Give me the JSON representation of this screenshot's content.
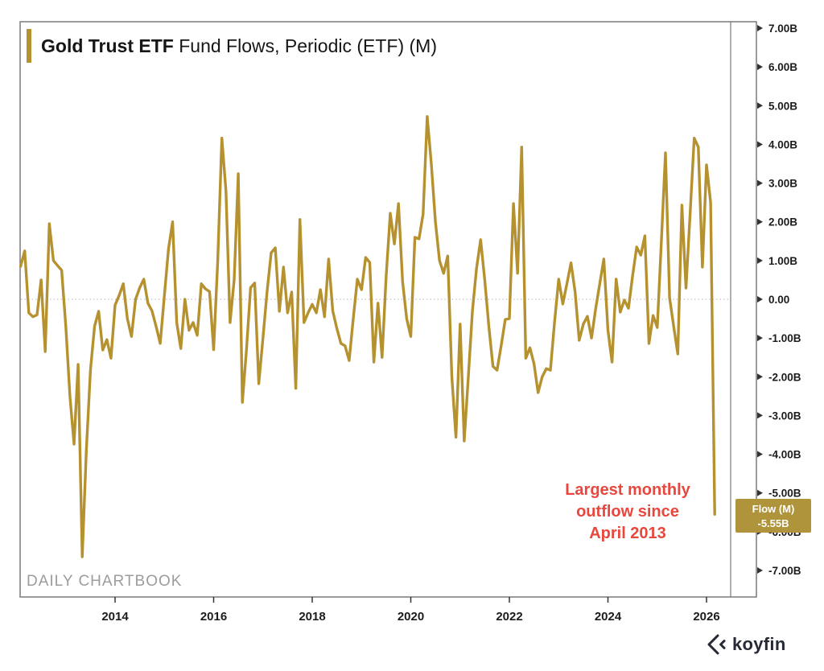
{
  "title": {
    "highlight": "Gold Trust ETF",
    "rest": " Fund Flows, Periodic (ETF) (M)"
  },
  "watermark": "DAILY CHARTBOOK",
  "annotation": {
    "line1": "Largest monthly",
    "line2": "outflow since",
    "line3": "April 2013"
  },
  "badge": {
    "label": "Flow (M)",
    "value": "-5.55B"
  },
  "logo": {
    "text": "koyfin"
  },
  "colors": {
    "gold": "#b5922f",
    "badge_bg": "#af943c",
    "red": "#e8473e",
    "axis_text": "#1c1c1c",
    "frame": "#7a7a7a",
    "tick": "#333333",
    "zero_line": "#c4c4c4",
    "watermark": "#9c9c9c",
    "logo": "#252a35"
  },
  "chart_data": {
    "type": "line",
    "title": "Gold Trust ETF Fund Flows, Periodic (ETF) (M)",
    "series_name": "Flow (M)",
    "unit": "billions USD",
    "legend": "none",
    "grid": "dotted zero line only",
    "x_axis": {
      "tick_years": [
        2014,
        2016,
        2018,
        2020,
        2022,
        2024,
        2026
      ]
    },
    "y_axis": {
      "side": "right",
      "ticks": [
        {
          "label": "7.00B",
          "value": 7
        },
        {
          "label": "6.00B",
          "value": 6
        },
        {
          "label": "5.00B",
          "value": 5
        },
        {
          "label": "4.00B",
          "value": 4
        },
        {
          "label": "3.00B",
          "value": 3
        },
        {
          "label": "2.00B",
          "value": 2
        },
        {
          "label": "1.00B",
          "value": 1
        },
        {
          "label": "0.00",
          "value": 0
        },
        {
          "label": "-1.00B",
          "value": -1
        },
        {
          "label": "-2.00B",
          "value": -2
        },
        {
          "label": "-3.00B",
          "value": -3
        },
        {
          "label": "-4.00B",
          "value": -4
        },
        {
          "label": "-5.00B",
          "value": -5
        },
        {
          "label": "-6.00B",
          "value": -6
        },
        {
          "label": "-7.00B",
          "value": -7
        }
      ]
    },
    "ylim": [
      -7.7,
      7.2
    ],
    "x_range_years": [
      2012.05,
      2026.5
    ],
    "frequency": "monthly",
    "values_by_year": {
      "2012": [
        0.85,
        1.25,
        -0.35,
        -0.45,
        -0.4,
        0.5,
        -1.35,
        1.95,
        1.0,
        0.87,
        0.75,
        -0.7
      ],
      "2013": [
        -2.5,
        -3.74,
        -1.68,
        -6.65,
        -3.9,
        -1.83,
        -0.7,
        -0.31,
        -1.31,
        -1.04,
        -1.52,
        -0.15
      ],
      "2014": [
        0.1,
        0.4,
        -0.5,
        -0.96,
        0.0,
        0.3,
        0.52,
        -0.1,
        -0.3,
        -0.7,
        -1.14,
        0.1
      ],
      "2015": [
        1.3,
        2.0,
        -0.6,
        -1.27,
        0.0,
        -0.8,
        -0.6,
        -0.93,
        0.4,
        0.27,
        0.2,
        -1.3
      ],
      "2016": [
        1.0,
        4.16,
        2.8,
        -0.6,
        0.5,
        3.24,
        -2.66,
        -1.3,
        0.3,
        0.42,
        -2.18,
        -1.0
      ],
      "2017": [
        0.2,
        1.2,
        1.33,
        -0.31,
        0.83,
        -0.35,
        0.19,
        -2.3,
        2.06,
        -0.6,
        -0.35,
        -0.13
      ],
      "2018": [
        -0.35,
        0.25,
        -0.45,
        1.04,
        -0.3,
        -0.75,
        -1.14,
        -1.2,
        -1.58,
        -0.5,
        0.52,
        0.25
      ],
      "2019": [
        1.08,
        0.95,
        -1.62,
        -0.1,
        -1.5,
        0.6,
        2.22,
        1.43,
        2.47,
        0.46,
        -0.5,
        -0.96
      ],
      "2020": [
        1.6,
        1.56,
        2.2,
        4.72,
        3.5,
        2.0,
        1.0,
        0.67,
        1.12,
        -2.0,
        -3.56,
        -0.64
      ],
      "2021": [
        -3.66,
        -2.0,
        -0.3,
        0.8,
        1.54,
        0.5,
        -0.7,
        -1.73,
        -1.83,
        -1.2,
        -0.52,
        -0.5
      ],
      "2022": [
        2.47,
        0.67,
        3.93,
        -1.52,
        -1.25,
        -1.66,
        -2.41,
        -2.0,
        -1.79,
        -1.83,
        -0.6,
        0.52
      ],
      "2023": [
        -0.12,
        0.4,
        0.94,
        0.19,
        -1.06,
        -0.64,
        -0.44,
        -1.0,
        -0.25,
        0.4,
        1.04,
        -0.8
      ],
      "2024": [
        -1.62,
        0.52,
        -0.33,
        -0.02,
        -0.23,
        0.6,
        1.35,
        1.14,
        1.64,
        -1.14,
        -0.42,
        -0.73
      ],
      "2025": [
        1.5,
        3.78,
        0.04,
        -0.7,
        -1.41,
        2.43,
        0.29,
        2.2,
        4.16,
        3.93,
        0.83,
        3.47
      ],
      "2026": [
        2.5,
        -5.55
      ]
    },
    "last_point": {
      "date": "Feb 2026",
      "value_label": "-5.55B",
      "value": -5.55
    },
    "annotation": {
      "text": "Largest monthly outflow since April 2013"
    }
  }
}
